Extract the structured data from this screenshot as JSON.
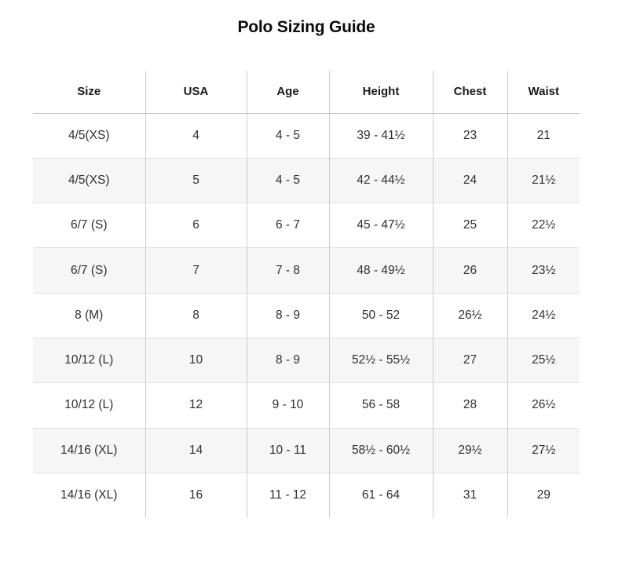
{
  "title": "Polo Sizing Guide",
  "chart_data": {
    "type": "table",
    "title": "Polo Sizing Guide",
    "columns": [
      "Size",
      "USA",
      "Age",
      "Height",
      "Chest",
      "Waist"
    ],
    "rows": [
      [
        "4/5(XS)",
        "4",
        "4 - 5",
        "39 - 41½",
        "23",
        "21"
      ],
      [
        "4/5(XS)",
        "5",
        "4 - 5",
        "42 - 44½",
        "24",
        "21½"
      ],
      [
        "6/7 (S)",
        "6",
        "6 - 7",
        "45 - 47½",
        "25",
        "22½"
      ],
      [
        "6/7 (S)",
        "7",
        "7 - 8",
        "48 - 49½",
        "26",
        "23½"
      ],
      [
        "8 (M)",
        "8",
        "8 - 9",
        "50 - 52",
        "26½",
        "24½"
      ],
      [
        "10/12 (L)",
        "10",
        "8 - 9",
        "52½ - 55½",
        "27",
        "25½"
      ],
      [
        "10/12 (L)",
        "12",
        "9 - 10",
        "56 - 58",
        "28",
        "26½"
      ],
      [
        "14/16 (XL)",
        "14",
        "10 - 11",
        "58½ - 60½",
        "29½",
        "27½"
      ],
      [
        "14/16 (XL)",
        "16",
        "11 - 12",
        "61 - 64",
        "31",
        "29"
      ]
    ],
    "layout": {
      "striped_rows": "even rows shaded",
      "alignment": "center",
      "outer_border": false,
      "legend_position": "none"
    }
  },
  "colors": {
    "stripe_bg": "#f6f6f6",
    "row_border": "#e2e2e2",
    "column_border": "#cccccc",
    "header_border": "#c2c2c2",
    "header_text": "#1a1a1a",
    "cell_text": "#2f2f2f",
    "title_text": "#0b0b0b"
  }
}
